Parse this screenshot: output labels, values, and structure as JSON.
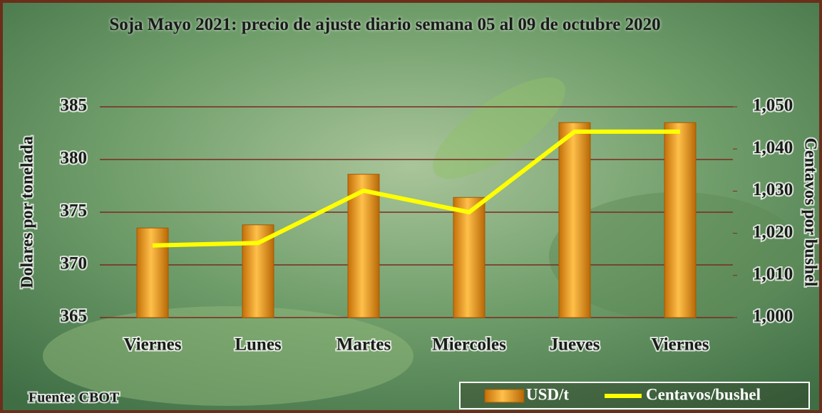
{
  "chart_data": {
    "type": "bar_line",
    "title": "Soja Mayo 2021: precio de ajuste diario  semana 05 al 09 de octubre 2020",
    "source": "Fuente:  CBOT",
    "y_label": "Dolares por tonelada",
    "y2_label": "Centavos por bushel",
    "categories": [
      "Viernes",
      "Lunes",
      "Martes",
      "Miercoles",
      "Jueves",
      "Viernes"
    ],
    "series": [
      {
        "name": "USD/t",
        "type": "bar",
        "color": "#f0a020",
        "values": [
          373.5,
          373.8,
          378.6,
          376.4,
          383.5,
          383.5
        ]
      },
      {
        "name": "Centavos/bushel",
        "type": "line",
        "axis": "y2",
        "color": "#ffff00",
        "values": [
          1017.1,
          1017.7,
          1030.1,
          1025,
          1044.1,
          1044.1
        ]
      }
    ],
    "ylim": [
      365,
      385
    ],
    "yticks": [
      365,
      370,
      375,
      380,
      385
    ],
    "y2lim": [
      1000,
      1050
    ],
    "y2ticks": [
      {
        "value": 1000,
        "label": "1,000"
      },
      {
        "value": 1010,
        "label": "1,010"
      },
      {
        "value": 1020,
        "label": "1,020"
      },
      {
        "value": 1030,
        "label": "1,030"
      },
      {
        "value": 1040,
        "label": "1,040"
      },
      {
        "value": 1050,
        "label": "1,050"
      }
    ],
    "grid": true,
    "grid_color": "#7a2a22"
  }
}
